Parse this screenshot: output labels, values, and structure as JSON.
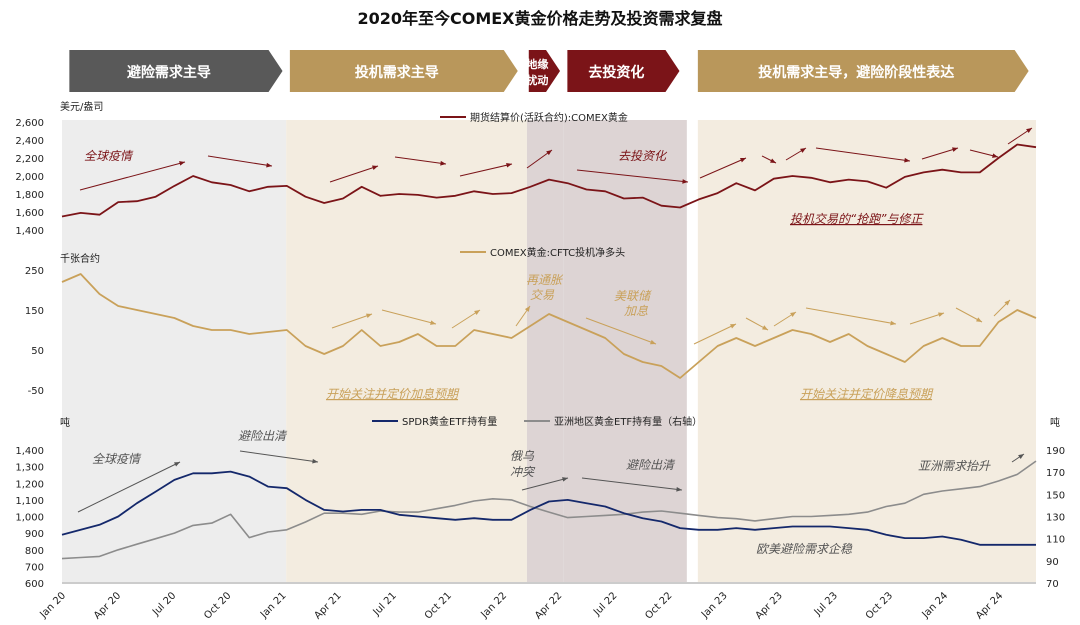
{
  "title": "2020年至今COMEX黄金价格走势及投资需求复盘",
  "colors": {
    "dark_red": "#7b1418",
    "gold": "#c9a15a",
    "navy": "#14286b",
    "gray_line": "#8c8c8c",
    "banner_gray": "#595959",
    "banner_gold": "#b9975b",
    "banner_red": "#7b1418",
    "shade_gray": "#ededed",
    "shade_gold": "#f3ece0",
    "shade_mid": "#ddd4d4",
    "annot_gray": "#555555"
  },
  "banners": [
    {
      "label": "避险需求主导",
      "color": "banner_gray"
    },
    {
      "label": "投机需求主导",
      "color": "banner_gold"
    },
    {
      "label": "地缘扰动",
      "color": "banner_red"
    },
    {
      "label": "去投资化",
      "color": "banner_red"
    },
    {
      "label": "投机需求主导，避险阶段性表达",
      "color": "banner_gold"
    }
  ],
  "panels": {
    "price": {
      "unit": "美元/盎司",
      "legend": "期货结算价(活跃合约):COMEX黄金",
      "yticks": [
        "2,600",
        "2,400",
        "2,200",
        "2,000",
        "1,800",
        "1,600",
        "1,400"
      ],
      "annotations": [
        "全球疫情",
        "去投资化",
        "投机交易的“抢跑”与修正"
      ]
    },
    "cftc": {
      "unit": "千张合约",
      "legend": "COMEX黄金:CFTC投机净多头",
      "yticks": [
        "250",
        "150",
        "50",
        "-50"
      ],
      "annotations": [
        "再通胀交易",
        "美联储加息",
        "开始关注并定价加息预期",
        "开始关注并定价降息预期"
      ]
    },
    "etf": {
      "unit_left": "吨",
      "unit_right": "吨",
      "legend_spdr": "SPDR黄金ETF持有量",
      "legend_asia": "亚洲地区黄金ETF持有量（右轴）",
      "yticks_left": [
        "1,400",
        "1,300",
        "1,200",
        "1,100",
        "1,000",
        "900",
        "800",
        "700",
        "600"
      ],
      "yticks_right": [
        "190",
        "170",
        "150",
        "130",
        "110",
        "90",
        "70"
      ],
      "annotations": [
        "全球疫情",
        "避险出清",
        "俄乌冲突",
        "避险出清",
        "亚洲需求抬升",
        "欧美避险需求企稳"
      ]
    }
  },
  "x_labels": [
    "Jan 20",
    "Apr 20",
    "Jul 20",
    "Oct 20",
    "Jan 21",
    "Apr 21",
    "Jul 21",
    "Oct 21",
    "Jan 22",
    "Apr 22",
    "Jul 22",
    "Oct 22",
    "Jan 23",
    "Apr 23",
    "Jul 23",
    "Oct 23",
    "Jan 24",
    "Apr 24"
  ],
  "chart_data": [
    {
      "type": "line",
      "title": "",
      "ylabel": "美元/盎司",
      "ylim": [
        1400,
        2600
      ],
      "x": [
        "2020-01",
        "2020-02",
        "2020-03",
        "2020-04",
        "2020-05",
        "2020-06",
        "2020-07",
        "2020-08",
        "2020-09",
        "2020-10",
        "2020-11",
        "2020-12",
        "2021-01",
        "2021-02",
        "2021-03",
        "2021-04",
        "2021-05",
        "2021-06",
        "2021-07",
        "2021-08",
        "2021-09",
        "2021-10",
        "2021-11",
        "2021-12",
        "2022-01",
        "2022-02",
        "2022-03",
        "2022-04",
        "2022-05",
        "2022-06",
        "2022-07",
        "2022-08",
        "2022-09",
        "2022-10",
        "2022-11",
        "2022-12",
        "2023-01",
        "2023-02",
        "2023-03",
        "2023-04",
        "2023-05",
        "2023-06",
        "2023-07",
        "2023-08",
        "2023-09",
        "2023-10",
        "2023-11",
        "2023-12",
        "2024-01",
        "2024-02",
        "2024-03",
        "2024-04",
        "2024-05"
      ],
      "series": [
        {
          "name": "期货结算价(活跃合约):COMEX黄金",
          "values": [
            1550,
            1590,
            1570,
            1710,
            1720,
            1770,
            1890,
            2000,
            1930,
            1900,
            1830,
            1880,
            1890,
            1770,
            1700,
            1750,
            1880,
            1780,
            1800,
            1790,
            1760,
            1780,
            1830,
            1800,
            1810,
            1880,
            1960,
            1920,
            1850,
            1830,
            1750,
            1760,
            1670,
            1650,
            1740,
            1810,
            1920,
            1840,
            1970,
            2000,
            1980,
            1930,
            1960,
            1940,
            1870,
            1990,
            2040,
            2070,
            2040,
            2040,
            2200,
            2350,
            2320
          ]
        }
      ]
    },
    {
      "type": "line",
      "title": "",
      "ylabel": "千张合约",
      "ylim": [
        -50,
        250
      ],
      "x": [
        "2020-01",
        "2020-02",
        "2020-03",
        "2020-04",
        "2020-05",
        "2020-06",
        "2020-07",
        "2020-08",
        "2020-09",
        "2020-10",
        "2020-11",
        "2020-12",
        "2021-01",
        "2021-02",
        "2021-03",
        "2021-04",
        "2021-05",
        "2021-06",
        "2021-07",
        "2021-08",
        "2021-09",
        "2021-10",
        "2021-11",
        "2021-12",
        "2022-01",
        "2022-02",
        "2022-03",
        "2022-04",
        "2022-05",
        "2022-06",
        "2022-07",
        "2022-08",
        "2022-09",
        "2022-10",
        "2022-11",
        "2022-12",
        "2023-01",
        "2023-02",
        "2023-03",
        "2023-04",
        "2023-05",
        "2023-06",
        "2023-07",
        "2023-08",
        "2023-09",
        "2023-10",
        "2023-11",
        "2023-12",
        "2024-01",
        "2024-02",
        "2024-03",
        "2024-04",
        "2024-05"
      ],
      "series": [
        {
          "name": "COMEX黄金:CFTC投机净多头",
          "values": [
            220,
            240,
            190,
            160,
            150,
            140,
            130,
            110,
            100,
            100,
            90,
            95,
            100,
            60,
            40,
            60,
            100,
            60,
            70,
            90,
            60,
            60,
            100,
            90,
            80,
            110,
            140,
            120,
            100,
            80,
            40,
            20,
            10,
            -20,
            20,
            60,
            80,
            60,
            80,
            100,
            90,
            70,
            90,
            60,
            40,
            20,
            60,
            80,
            60,
            60,
            120,
            150,
            130
          ]
        }
      ]
    },
    {
      "type": "line",
      "title": "",
      "ylabel": "吨",
      "ylim": [
        600,
        1400
      ],
      "y2label": "吨",
      "y2lim": [
        70,
        190
      ],
      "x": [
        "2020-01",
        "2020-02",
        "2020-03",
        "2020-04",
        "2020-05",
        "2020-06",
        "2020-07",
        "2020-08",
        "2020-09",
        "2020-10",
        "2020-11",
        "2020-12",
        "2021-01",
        "2021-02",
        "2021-03",
        "2021-04",
        "2021-05",
        "2021-06",
        "2021-07",
        "2021-08",
        "2021-09",
        "2021-10",
        "2021-11",
        "2021-12",
        "2022-01",
        "2022-02",
        "2022-03",
        "2022-04",
        "2022-05",
        "2022-06",
        "2022-07",
        "2022-08",
        "2022-09",
        "2022-10",
        "2022-11",
        "2022-12",
        "2023-01",
        "2023-02",
        "2023-03",
        "2023-04",
        "2023-05",
        "2023-06",
        "2023-07",
        "2023-08",
        "2023-09",
        "2023-10",
        "2023-11",
        "2023-12",
        "2024-01",
        "2024-02",
        "2024-03",
        "2024-04",
        "2024-05"
      ],
      "series": [
        {
          "name": "SPDR黄金ETF持有量",
          "axis": "left",
          "values": [
            890,
            920,
            950,
            1000,
            1080,
            1150,
            1220,
            1260,
            1260,
            1270,
            1240,
            1180,
            1170,
            1100,
            1040,
            1030,
            1040,
            1040,
            1010,
            1000,
            990,
            980,
            990,
            980,
            980,
            1040,
            1090,
            1100,
            1080,
            1060,
            1020,
            990,
            970,
            930,
            920,
            920,
            930,
            920,
            930,
            940,
            940,
            940,
            930,
            920,
            890,
            870,
            870,
            880,
            860,
            830,
            830,
            830,
            830
          ]
        },
        {
          "name": "亚洲地区黄金ETF持有量（右轴）",
          "axis": "right",
          "values": [
            92,
            93,
            94,
            100,
            105,
            110,
            115,
            122,
            124,
            132,
            111,
            116,
            118,
            125,
            133,
            133,
            132,
            135,
            134,
            134,
            137,
            140,
            144,
            146,
            145,
            139,
            134,
            129,
            130,
            131,
            132,
            134,
            135,
            133,
            131,
            129,
            128,
            126,
            128,
            130,
            130,
            131,
            132,
            134,
            139,
            142,
            150,
            153,
            155,
            157,
            162,
            168,
            180
          ]
        }
      ]
    }
  ]
}
